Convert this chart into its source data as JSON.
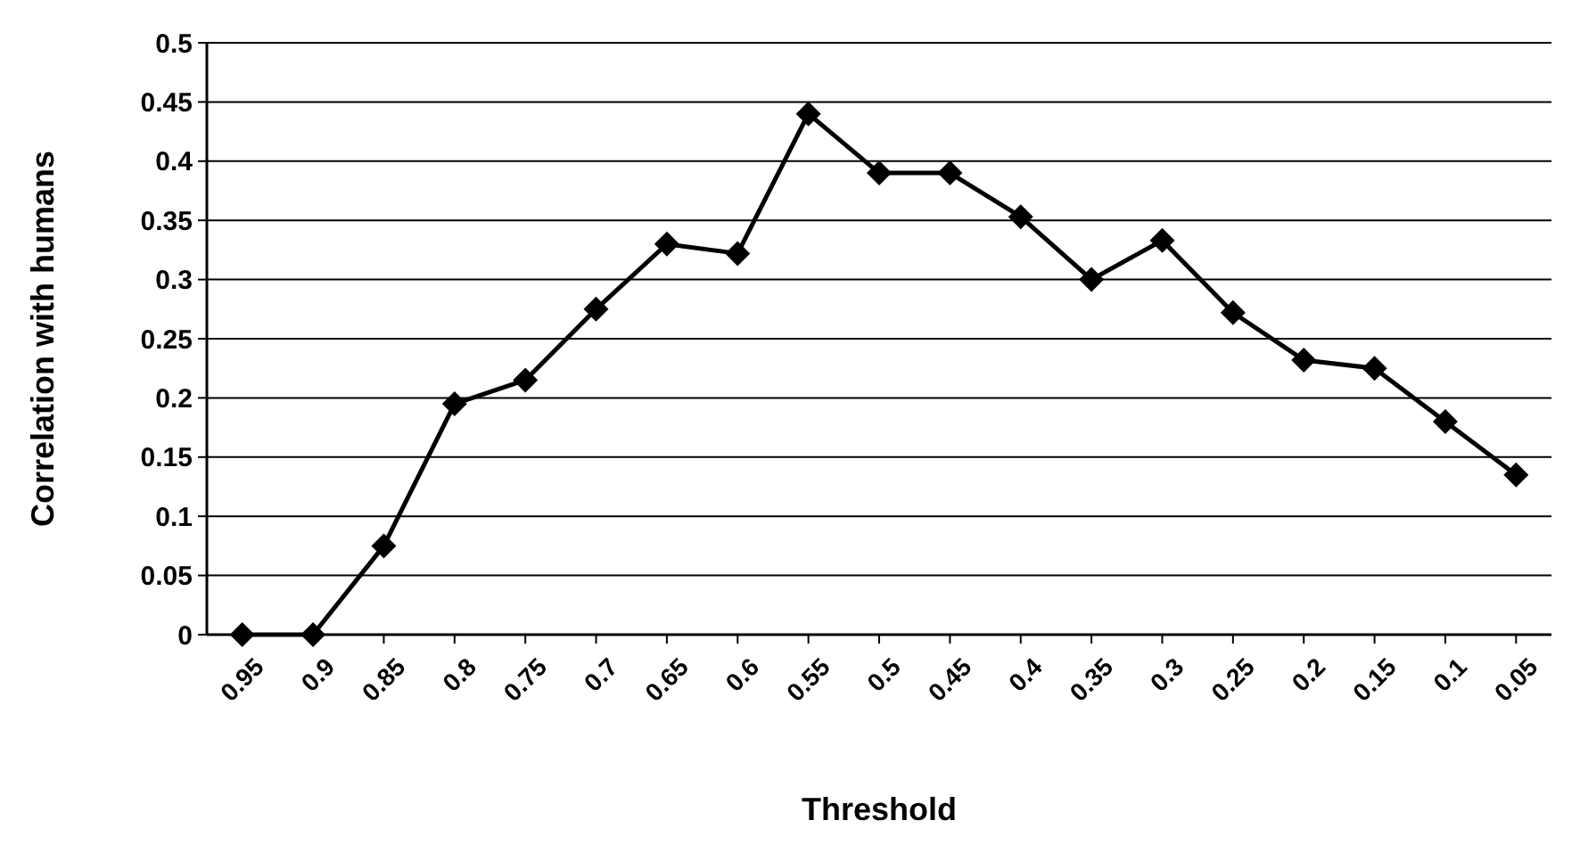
{
  "chart_data": {
    "type": "line",
    "xlabel": "Threshold",
    "ylabel": "Correlation with humans",
    "categories": [
      "0.95",
      "0.9",
      "0.85",
      "0.8",
      "0.75",
      "0.7",
      "0.65",
      "0.6",
      "0.55",
      "0.5",
      "0.45",
      "0.4",
      "0.35",
      "0.3",
      "0.25",
      "0.2",
      "0.15",
      "0.1",
      "0.05"
    ],
    "series": [
      {
        "color": "#000000",
        "values": [
          0,
          0,
          0.075,
          0.195,
          0.215,
          0.275,
          0.33,
          0.322,
          0.44,
          0.39,
          0.39,
          0.353,
          0.3,
          0.333,
          0.272,
          0.232,
          0.225,
          0.18,
          0.135
        ]
      }
    ],
    "ylim": [
      0,
      0.5
    ],
    "yticks": [
      0,
      0.05,
      0.1,
      0.15,
      0.2,
      0.25,
      0.3,
      0.35,
      0.4,
      0.45,
      0.5
    ],
    "grid": "y",
    "marker": "diamond",
    "line_style": "solid"
  }
}
